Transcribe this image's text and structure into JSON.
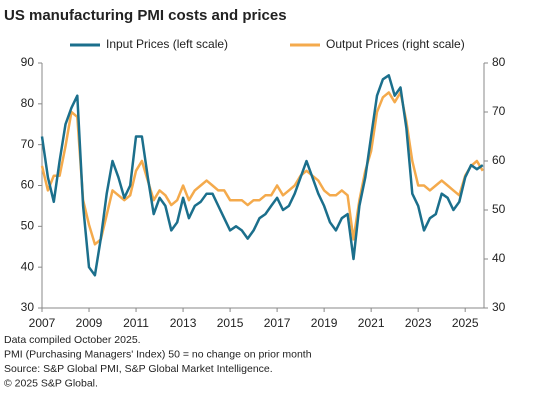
{
  "chart_data": {
    "type": "line",
    "title": "US manufacturing PMI costs and prices",
    "x": [
      2007,
      2007.25,
      2007.5,
      2007.75,
      2008,
      2008.25,
      2008.5,
      2008.75,
      2009,
      2009.25,
      2009.5,
      2009.75,
      2010,
      2010.25,
      2010.5,
      2010.75,
      2011,
      2011.25,
      2011.5,
      2011.75,
      2012,
      2012.25,
      2012.5,
      2012.75,
      2013,
      2013.25,
      2013.5,
      2013.75,
      2014,
      2014.25,
      2014.5,
      2014.75,
      2015,
      2015.25,
      2015.5,
      2015.75,
      2016,
      2016.25,
      2016.5,
      2016.75,
      2017,
      2017.25,
      2017.5,
      2017.75,
      2018,
      2018.25,
      2018.5,
      2018.75,
      2019,
      2019.25,
      2019.5,
      2019.75,
      2020,
      2020.25,
      2020.5,
      2020.75,
      2021,
      2021.25,
      2021.5,
      2021.75,
      2022,
      2022.25,
      2022.5,
      2022.75,
      2023,
      2023.25,
      2023.5,
      2023.75,
      2024,
      2024.25,
      2024.5,
      2024.75,
      2025,
      2025.25,
      2025.5,
      2025.75
    ],
    "series": [
      {
        "name": "Input Prices (left scale)",
        "color": "#1b6f8c",
        "values": [
          72,
          62,
          56,
          66,
          75,
          79,
          82,
          55,
          40,
          38,
          47,
          58,
          66,
          62,
          57,
          60,
          72,
          72,
          62,
          53,
          57,
          55,
          49,
          51,
          57,
          52,
          55,
          56,
          58,
          58,
          55,
          52,
          49,
          50,
          49,
          47,
          49,
          52,
          53,
          55,
          57,
          54,
          55,
          58,
          62,
          66,
          62,
          58,
          55,
          51,
          49,
          52,
          53,
          42,
          55,
          62,
          72,
          82,
          86,
          87,
          82,
          84,
          74,
          58,
          55,
          49,
          52,
          53,
          58,
          57,
          54,
          56,
          62,
          65,
          64,
          65
        ]
      },
      {
        "name": "Output Prices (right scale)",
        "color": "#f4aa4c",
        "axis": "y2",
        "values": [
          59,
          54,
          57,
          57,
          63,
          70,
          69,
          52,
          47,
          43,
          44,
          49,
          54,
          53,
          52,
          53,
          58,
          60,
          56,
          52,
          54,
          53,
          51,
          52,
          55,
          52,
          54,
          55,
          56,
          55,
          54,
          54,
          52,
          52,
          52,
          51,
          52,
          52,
          53,
          53,
          55,
          53,
          54,
          55,
          57,
          58,
          57,
          56,
          54,
          53,
          53,
          54,
          53,
          44,
          52,
          58,
          62,
          70,
          73,
          74,
          72,
          74,
          68,
          60,
          55,
          55,
          54,
          55,
          56,
          55,
          54,
          53,
          57,
          59,
          60,
          58
        ]
      }
    ],
    "xlim": [
      2007,
      2025.8
    ],
    "xticks": [
      2007,
      2009,
      2011,
      2013,
      2015,
      2017,
      2019,
      2021,
      2023,
      2025
    ],
    "ylim": [
      30,
      90
    ],
    "yticks": [
      30,
      40,
      50,
      60,
      70,
      80,
      90
    ],
    "y2lim": [
      30,
      80
    ],
    "y2ticks": [
      30,
      40,
      50,
      60,
      70,
      80
    ],
    "notes": [
      "Data compiled October 2025.",
      "PMI (Purchasing Managers' Index) 50 = no change on prior month",
      "Source: S&P Global PMI, S&P Global Market Intelligence.",
      "© 2025 S&P Global."
    ]
  }
}
